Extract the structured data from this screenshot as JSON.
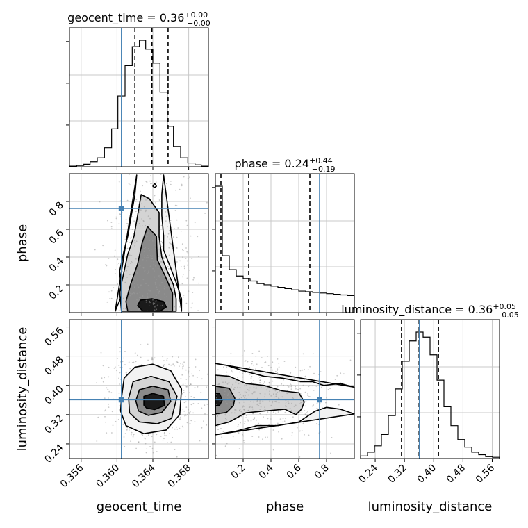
{
  "chart_data": {
    "type": "corner",
    "grid": true,
    "parameters": [
      {
        "name": "geocent_time",
        "xlabel": "geocent_time",
        "title": {
          "main": "geocent_time = 0.36",
          "sup": "+0.00",
          "sub": "−0.00"
        },
        "range": [
          0.3547,
          0.3702
        ],
        "ticks": [
          0.356,
          0.36,
          0.364,
          0.368
        ],
        "tick_labels": [
          "0.356",
          "0.360",
          "0.364",
          "0.368"
        ],
        "injection": 0.3605,
        "quantiles": [
          0.362,
          0.3639,
          0.3657
        ],
        "hist_edges": [
          0.3547,
          0.3555,
          0.3563,
          0.357,
          0.3578,
          0.3586,
          0.3594,
          0.3601,
          0.3609,
          0.3617,
          0.3625,
          0.3632,
          0.364,
          0.3648,
          0.3656,
          0.3663,
          0.3671,
          0.3679,
          0.3687,
          0.3694,
          0.3702
        ],
        "hist_values": [
          0.005,
          0.01,
          0.02,
          0.04,
          0.07,
          0.15,
          0.3,
          0.56,
          0.8,
          0.95,
          1.0,
          0.93,
          0.82,
          0.59,
          0.32,
          0.16,
          0.07,
          0.03,
          0.015,
          0.005
        ]
      },
      {
        "name": "phase",
        "xlabel": "phase",
        "ylabel": "phase",
        "title": {
          "main": "phase = 0.24",
          "sup": "+0.44",
          "sub": "−0.19"
        },
        "range": [
          0.0,
          1.0
        ],
        "ticks": [
          0.2,
          0.4,
          0.6,
          0.8
        ],
        "tick_labels": [
          "0.2",
          "0.4",
          "0.6",
          "0.8"
        ],
        "injection": 0.75,
        "quantiles": [
          0.04,
          0.24,
          0.68
        ],
        "hist_edges": [
          0.0,
          0.05,
          0.1,
          0.15,
          0.2,
          0.25,
          0.3,
          0.35,
          0.4,
          0.45,
          0.5,
          0.55,
          0.6,
          0.65,
          0.7,
          0.75,
          0.8,
          0.85,
          0.9,
          0.95,
          1.0
        ],
        "hist_values": [
          1.0,
          0.45,
          0.34,
          0.29,
          0.27,
          0.25,
          0.23,
          0.22,
          0.21,
          0.2,
          0.19,
          0.18,
          0.17,
          0.165,
          0.16,
          0.155,
          0.15,
          0.145,
          0.14,
          0.135
        ]
      },
      {
        "name": "luminosity_distance",
        "xlabel": "luminosity_distance",
        "ylabel": "luminosity_distance",
        "title": {
          "main": "luminosity_distance = 0.36",
          "sup": "+0.05",
          "sub": "−0.05"
        },
        "range": [
          0.2,
          0.58
        ],
        "ticks": [
          0.24,
          0.32,
          0.4,
          0.48,
          0.56
        ],
        "tick_labels": [
          "0.24",
          "0.32",
          "0.40",
          "0.48",
          "0.56"
        ],
        "injection": 0.361,
        "quantiles": [
          0.312,
          0.36,
          0.413
        ],
        "hist_edges": [
          0.2,
          0.219,
          0.238,
          0.257,
          0.276,
          0.295,
          0.314,
          0.333,
          0.352,
          0.371,
          0.39,
          0.409,
          0.428,
          0.447,
          0.466,
          0.485,
          0.504,
          0.523,
          0.542,
          0.561,
          0.58
        ],
        "hist_values": [
          0.02,
          0.05,
          0.1,
          0.19,
          0.34,
          0.55,
          0.77,
          0.93,
          1.0,
          0.96,
          0.82,
          0.62,
          0.41,
          0.26,
          0.15,
          0.09,
          0.05,
          0.03,
          0.015,
          0.01
        ]
      }
    ],
    "pairs": [
      {
        "x": "geocent_time",
        "y": "phase",
        "injection": [
          0.3605,
          0.75
        ],
        "contours": [
          {
            "level": 0.118,
            "points": [
              [
                0.3629,
                0.01
              ],
              [
                0.3623,
                0.05
              ],
              [
                0.3626,
                0.09
              ],
              [
                0.3639,
                0.1
              ],
              [
                0.3652,
                0.08
              ],
              [
                0.3655,
                0.04
              ],
              [
                0.3648,
                0.01
              ]
            ]
          },
          {
            "level": 0.393,
            "points": [
              [
                0.3612,
                0.01
              ],
              [
                0.361,
                0.08
              ],
              [
                0.3615,
                0.2
              ],
              [
                0.3623,
                0.35
              ],
              [
                0.3628,
                0.5
              ],
              [
                0.3634,
                0.62
              ],
              [
                0.3644,
                0.55
              ],
              [
                0.3645,
                0.38
              ],
              [
                0.3654,
                0.26
              ],
              [
                0.3662,
                0.14
              ],
              [
                0.3662,
                0.01
              ]
            ]
          },
          {
            "level": 0.675,
            "points": [
              [
                0.3605,
                0.01
              ],
              [
                0.3603,
                0.15
              ],
              [
                0.3608,
                0.3
              ],
              [
                0.3612,
                0.42
              ],
              [
                0.3619,
                0.55
              ],
              [
                0.3623,
                0.7
              ],
              [
                0.3627,
                0.85
              ],
              [
                0.3636,
                0.82
              ],
              [
                0.3647,
                0.72
              ],
              [
                0.3647,
                0.55
              ],
              [
                0.365,
                0.4
              ],
              [
                0.3656,
                0.3
              ],
              [
                0.3663,
                0.2
              ],
              [
                0.3666,
                0.1
              ],
              [
                0.3666,
                0.01
              ]
            ]
          },
          {
            "level": 0.865,
            "points": [
              [
                0.3598,
                0.01
              ],
              [
                0.3605,
                0.12
              ],
              [
                0.3603,
                0.3
              ],
              [
                0.3608,
                0.45
              ],
              [
                0.3612,
                0.55
              ],
              [
                0.3616,
                0.7
              ],
              [
                0.362,
                0.85
              ],
              [
                0.3622,
                0.99
              ]
            ]
          },
          {
            "level": 0.865,
            "points": [
              [
                0.3652,
                0.99
              ],
              [
                0.365,
                0.85
              ],
              [
                0.365,
                0.7
              ],
              [
                0.3652,
                0.55
              ],
              [
                0.3652,
                0.45
              ],
              [
                0.366,
                0.32
              ],
              [
                0.3667,
                0.2
              ],
              [
                0.3672,
                0.1
              ],
              [
                0.3672,
                0.01
              ]
            ]
          },
          {
            "level": 0.865,
            "points": [
              [
                0.3642,
                0.93
              ],
              [
                0.364,
                0.91
              ],
              [
                0.3642,
                0.9
              ],
              [
                0.3644,
                0.91
              ],
              [
                0.3642,
                0.93
              ]
            ]
          }
        ]
      },
      {
        "x": "geocent_time",
        "y": "luminosity_distance",
        "injection": [
          0.3605,
          0.361
        ],
        "contours": [
          {
            "level": 0.118,
            "points": [
              [
                0.363,
                0.346
              ],
              [
                0.363,
                0.37
              ],
              [
                0.364,
                0.378
              ],
              [
                0.3652,
                0.37
              ],
              [
                0.3653,
                0.345
              ],
              [
                0.3642,
                0.334
              ],
              [
                0.3633,
                0.338
              ]
            ]
          },
          {
            "level": 0.393,
            "points": [
              [
                0.3621,
                0.358
              ],
              [
                0.3625,
                0.388
              ],
              [
                0.364,
                0.398
              ],
              [
                0.3657,
                0.388
              ],
              [
                0.366,
                0.356
              ],
              [
                0.365,
                0.326
              ],
              [
                0.3635,
                0.318
              ],
              [
                0.3624,
                0.33
              ]
            ]
          },
          {
            "level": 0.675,
            "points": [
              [
                0.3613,
                0.365
              ],
              [
                0.3618,
                0.41
              ],
              [
                0.3638,
                0.425
              ],
              [
                0.3658,
                0.41
              ],
              [
                0.3667,
                0.37
              ],
              [
                0.3661,
                0.31
              ],
              [
                0.3645,
                0.295
              ],
              [
                0.3625,
                0.3
              ],
              [
                0.3614,
                0.325
              ]
            ]
          },
          {
            "level": 0.865,
            "points": [
              [
                0.3605,
                0.365
              ],
              [
                0.3608,
                0.42
              ],
              [
                0.362,
                0.45
              ],
              [
                0.364,
                0.458
              ],
              [
                0.366,
                0.44
              ],
              [
                0.3672,
                0.39
              ],
              [
                0.367,
                0.32
              ],
              [
                0.3655,
                0.278
              ],
              [
                0.363,
                0.268
              ],
              [
                0.361,
                0.29
              ],
              [
                0.3604,
                0.33
              ]
            ]
          }
        ]
      },
      {
        "x": "phase",
        "y": "luminosity_distance",
        "injection": [
          0.75,
          0.361
        ],
        "contours": [
          {
            "level": 0.118,
            "points": [
              [
                0.0,
                0.345
              ],
              [
                0.03,
                0.345
              ],
              [
                0.05,
                0.36
              ],
              [
                0.03,
                0.378
              ],
              [
                0.0,
                0.378
              ]
            ]
          },
          {
            "level": 0.393,
            "points": [
              [
                0.0,
                0.322
              ],
              [
                0.08,
                0.326
              ],
              [
                0.13,
                0.345
              ],
              [
                0.14,
                0.365
              ],
              [
                0.1,
                0.392
              ],
              [
                0.0,
                0.398
              ]
            ]
          },
          {
            "level": 0.675,
            "points": [
              [
                0.0,
                0.29
              ],
              [
                0.1,
                0.3
              ],
              [
                0.22,
                0.325
              ],
              [
                0.35,
                0.33
              ],
              [
                0.5,
                0.335
              ],
              [
                0.58,
                0.32
              ],
              [
                0.62,
                0.335
              ],
              [
                0.64,
                0.355
              ],
              [
                0.6,
                0.38
              ],
              [
                0.48,
                0.385
              ],
              [
                0.35,
                0.4
              ],
              [
                0.22,
                0.405
              ],
              [
                0.1,
                0.425
              ],
              [
                0.0,
                0.428
              ]
            ]
          },
          {
            "level": 0.865,
            "points": [
              [
                0.0,
                0.265
              ],
              [
                0.15,
                0.275
              ],
              [
                0.3,
                0.29
              ],
              [
                0.45,
                0.29
              ],
              [
                0.6,
                0.3
              ],
              [
                0.68,
                0.32
              ],
              [
                0.72,
                0.33
              ],
              [
                0.8,
                0.34
              ],
              [
                0.9,
                0.335
              ],
              [
                1.0,
                0.322
              ]
            ]
          },
          {
            "level": 0.865,
            "points": [
              [
                1.0,
                0.395
              ],
              [
                0.9,
                0.405
              ],
              [
                0.78,
                0.4
              ],
              [
                0.7,
                0.41
              ],
              [
                0.62,
                0.41
              ],
              [
                0.48,
                0.42
              ],
              [
                0.35,
                0.425
              ],
              [
                0.2,
                0.44
              ],
              [
                0.08,
                0.455
              ],
              [
                0.0,
                0.46
              ]
            ]
          }
        ]
      }
    ]
  }
}
